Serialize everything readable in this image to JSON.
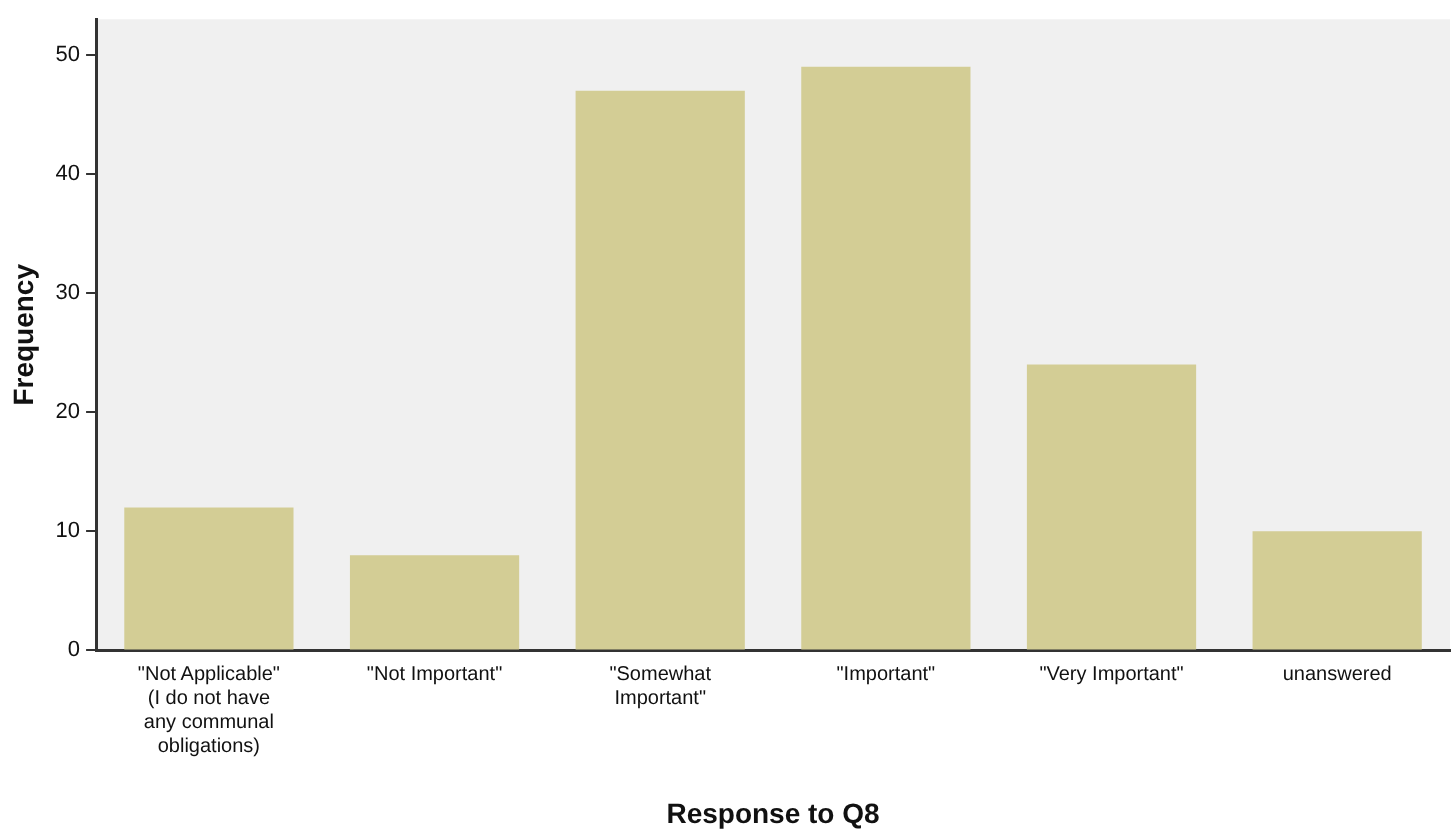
{
  "chart_data": {
    "type": "bar",
    "xlabel": "Response to Q8",
    "ylabel": "Frequency",
    "categories": [
      "\"Not Applicable\" (I do not have any communal obligations)",
      "\"Not Important\"",
      "\"Somewhat Important\"",
      "\"Important\"",
      "\"Very Important\"",
      "unanswered"
    ],
    "values": [
      12,
      8,
      47,
      49,
      24,
      10
    ],
    "color": "#d3cd95",
    "ylim": [
      0,
      53
    ],
    "yticks": [
      0,
      10,
      20,
      30,
      40,
      50
    ],
    "grid": false,
    "legend": false
  }
}
